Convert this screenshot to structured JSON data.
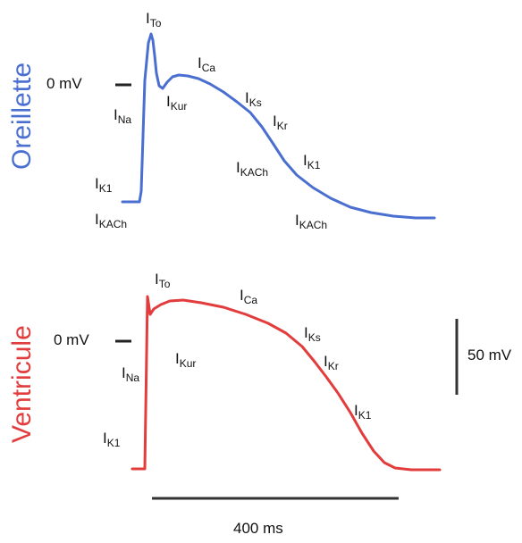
{
  "colors": {
    "atrium": "#4a6fd0",
    "ventricle": "#e23c3c",
    "scale": "#333333",
    "marker": "#222222"
  },
  "atrium": {
    "side_label": "Oreillette",
    "zero_label": "0 mV",
    "currents": [
      {
        "name": "To",
        "text": "I",
        "sub": "To"
      },
      {
        "name": "Na",
        "text": "I",
        "sub": "Na"
      },
      {
        "name": "Kur",
        "text": "I",
        "sub": "Kur"
      },
      {
        "name": "Ca",
        "text": "I",
        "sub": "Ca"
      },
      {
        "name": "Ks",
        "text": "I",
        "sub": "Ks"
      },
      {
        "name": "Kr",
        "text": "I",
        "sub": "Kr"
      },
      {
        "name": "KACh-mid",
        "text": "I",
        "sub": "KACh"
      },
      {
        "name": "K1-right",
        "text": "I",
        "sub": "K1"
      },
      {
        "name": "K1-left",
        "text": "I",
        "sub": "K1"
      },
      {
        "name": "KACh-left",
        "text": "I",
        "sub": "KACh"
      },
      {
        "name": "KACh-bottom",
        "text": "I",
        "sub": "KACh"
      }
    ]
  },
  "ventricle": {
    "side_label": "Ventricule",
    "zero_label": "0 mV",
    "currents": [
      {
        "name": "To",
        "text": "I",
        "sub": "To"
      },
      {
        "name": "Ca",
        "text": "I",
        "sub": "Ca"
      },
      {
        "name": "Na",
        "text": "I",
        "sub": "Na"
      },
      {
        "name": "Kur",
        "text": "I",
        "sub": "Kur"
      },
      {
        "name": "Ks",
        "text": "I",
        "sub": "Ks"
      },
      {
        "name": "Kr",
        "text": "I",
        "sub": "Kr"
      },
      {
        "name": "K1-right",
        "text": "I",
        "sub": "K1"
      },
      {
        "name": "K1-left",
        "text": "I",
        "sub": "K1"
      }
    ]
  },
  "scale": {
    "voltage_label": "50 mV",
    "time_label": "400 ms"
  }
}
